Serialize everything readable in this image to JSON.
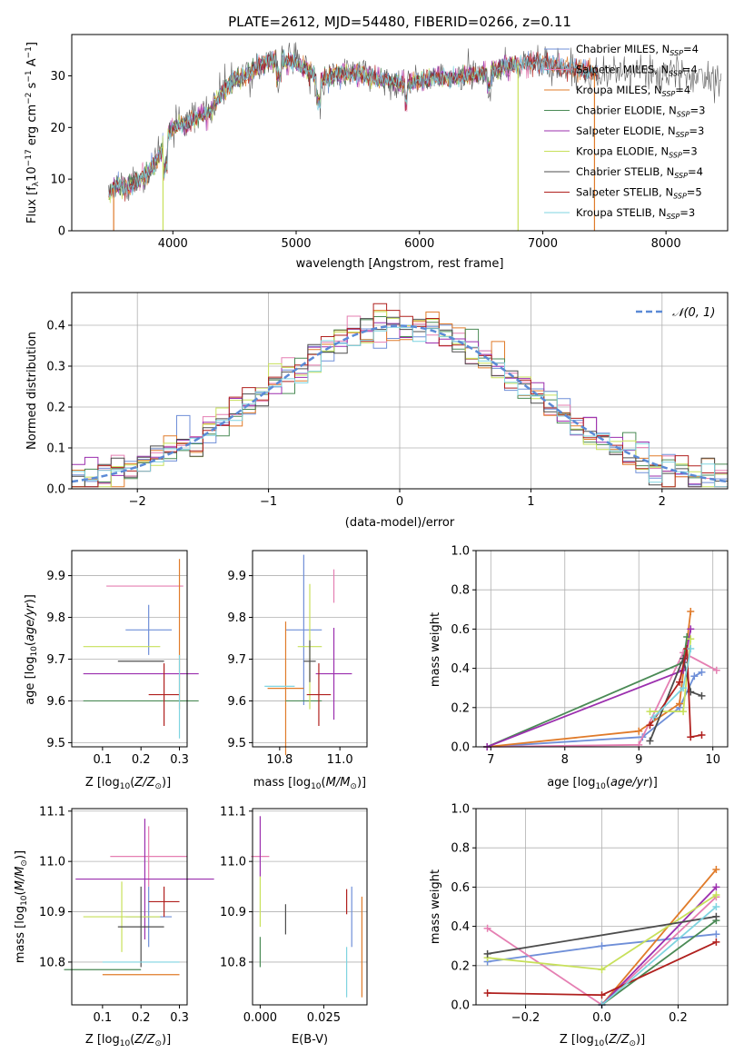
{
  "colors": {
    "chabrier_miles": "#6f8fd8",
    "salpeter_miles": "#e57fb2",
    "kroupa_miles": "#e07b2a",
    "chabrier_elodie": "#4a8a55",
    "salpeter_elodie": "#9b2fae",
    "kroupa_elodie": "#c7e05a",
    "chabrier_stelib": "#4d4d4d",
    "salpeter_stelib": "#b0201e",
    "kroupa_stelib": "#7fd4e0",
    "normal_curve": "#5b8ad6",
    "grid": "#b0b0b0"
  },
  "chart_data": [
    {
      "panel": "spectrum",
      "type": "line",
      "title": "PLATE=2612, MJD=54480, FIBERID=0266, z=0.11",
      "xlabel": "wavelength [Angstrom, rest frame]",
      "ylabel": "Flux [f_λ10^-17 erg cm^-2 s^-1 A^-1]",
      "xlim": [
        3180,
        8500
      ],
      "ylim": [
        0,
        38
      ],
      "xticks": [
        4000,
        5000,
        6000,
        7000,
        8000
      ],
      "yticks": [
        0,
        10,
        20,
        30
      ],
      "grid": false,
      "legend_position": "right",
      "legend": [
        "Chabrier MILES, N_SSP=4",
        "Salpeter MILES, N_SSP=4",
        "Kroupa MILES, N_SSP=4",
        "Chabrier ELODIE, N_SSP=3",
        "Salpeter ELODIE, N_SSP=3",
        "Kroupa ELODIE, N_SSP=3",
        "Chabrier STELIB, N_SSP=4",
        "Salpeter STELIB, N_SSP=5",
        "Kroupa STELIB, N_SSP=3"
      ],
      "continuum": [
        [
          3480,
          7
        ],
        [
          3550,
          9
        ],
        [
          3650,
          8.5
        ],
        [
          3750,
          10.5
        ],
        [
          3850,
          12.5
        ],
        [
          3900,
          15
        ],
        [
          3950,
          18
        ],
        [
          4000,
          20
        ],
        [
          4100,
          20.5
        ],
        [
          4200,
          22
        ],
        [
          4300,
          23
        ],
        [
          4400,
          27
        ],
        [
          4500,
          29
        ],
        [
          4600,
          30
        ],
        [
          4700,
          32
        ],
        [
          4800,
          33
        ],
        [
          4900,
          33
        ],
        [
          5000,
          32.5
        ],
        [
          5100,
          31
        ],
        [
          5200,
          29
        ],
        [
          5300,
          30
        ],
        [
          5400,
          30.5
        ],
        [
          5500,
          30.5
        ],
        [
          5600,
          30
        ],
        [
          5700,
          29
        ],
        [
          5800,
          29
        ],
        [
          5900,
          28
        ],
        [
          6000,
          29
        ],
        [
          6100,
          29.5
        ],
        [
          6200,
          29.5
        ],
        [
          6300,
          29.5
        ],
        [
          6400,
          30
        ],
        [
          6500,
          30.5
        ],
        [
          6600,
          31
        ],
        [
          6700,
          32
        ],
        [
          6800,
          32
        ],
        [
          6900,
          32.5
        ],
        [
          7000,
          32.5
        ],
        [
          7100,
          32
        ],
        [
          7200,
          31.5
        ],
        [
          7300,
          31
        ],
        [
          7500,
          30.5
        ],
        [
          7700,
          31
        ],
        [
          7900,
          30.5
        ],
        [
          8100,
          30
        ],
        [
          8300,
          30
        ],
        [
          8450,
          30
        ]
      ],
      "model_end": [
        7450,
        7450,
        7450,
        6800,
        6800,
        6800,
        7450,
        7450,
        7450
      ],
      "drop_lines": [
        3520,
        3920,
        6800,
        7420
      ]
    },
    {
      "panel": "residual_hist",
      "type": "step",
      "xlabel": "(data-model)/error",
      "ylabel": "Normed distribution",
      "xlim": [
        -2.5,
        2.5
      ],
      "ylim": [
        0,
        0.48
      ],
      "xticks": [
        -2,
        -1,
        0,
        1,
        2
      ],
      "yticks": [
        0.0,
        0.1,
        0.2,
        0.3,
        0.4
      ],
      "grid": true,
      "legend": [
        "𝒩(0, 1)"
      ],
      "legend_position": "top-right"
    },
    {
      "panel": "age_vs_Z",
      "type": "errorbar",
      "xlabel": "Z [log10(Z/Z⊙)]",
      "ylabel": "age [log10(age/yr)]",
      "xlim": [
        0.02,
        0.32
      ],
      "ylim": [
        9.49,
        9.96
      ],
      "xticks": [
        0.1,
        0.2,
        0.3
      ],
      "yticks": [
        9.5,
        9.6,
        9.7,
        9.8,
        9.9
      ],
      "points": [
        {
          "c": "chabrier_miles",
          "x": 0.22,
          "xerr": 0.06,
          "y": 9.77,
          "yerr": 0.06
        },
        {
          "c": "salpeter_miles",
          "x": 0.21,
          "xerr": 0.1,
          "y": 9.875,
          "yerr": 0.0
        },
        {
          "c": "kroupa_miles",
          "x": 0.3,
          "xerr": 0.0,
          "y": 9.76,
          "yerr": 0.18
        },
        {
          "c": "chabrier_elodie",
          "x": 0.2,
          "xerr": 0.15,
          "y": 9.6,
          "yerr": 0.0
        },
        {
          "c": "salpeter_elodie",
          "x": 0.2,
          "xerr": 0.15,
          "y": 9.665,
          "yerr": 0.0
        },
        {
          "c": "kroupa_elodie",
          "x": 0.15,
          "xerr": 0.1,
          "y": 9.73,
          "yerr": 0.0
        },
        {
          "c": "chabrier_stelib",
          "x": 0.2,
          "xerr": 0.06,
          "y": 9.695,
          "yerr": 0.0
        },
        {
          "c": "salpeter_stelib",
          "x": 0.26,
          "xerr": 0.04,
          "y": 9.615,
          "yerr": 0.075
        },
        {
          "c": "kroupa_stelib",
          "x": 0.3,
          "xerr": 0.0,
          "y": 9.61,
          "yerr": 0.1
        }
      ]
    },
    {
      "panel": "age_vs_mass",
      "type": "errorbar",
      "xlabel": "mass [log10(M/M⊙)]",
      "xlim": [
        10.71,
        11.09
      ],
      "ylim": [
        9.49,
        9.96
      ],
      "xticks": [
        10.8,
        11.0
      ],
      "yticks": [
        9.5,
        9.6,
        9.7,
        9.8,
        9.9
      ],
      "points": [
        {
          "c": "chabrier_miles",
          "x": 10.88,
          "xerr": 0.06,
          "y": 9.77,
          "yerr": 0.18
        },
        {
          "c": "salpeter_miles",
          "x": 10.98,
          "xerr": 0.0,
          "y": 9.875,
          "yerr": 0.04
        },
        {
          "c": "kroupa_miles",
          "x": 10.82,
          "xerr": 0.06,
          "y": 9.63,
          "yerr": 0.16
        },
        {
          "c": "chabrier_elodie",
          "x": 10.88,
          "xerr": 0.06,
          "y": 9.6,
          "yerr": 0.0
        },
        {
          "c": "salpeter_elodie",
          "x": 10.98,
          "xerr": 0.06,
          "y": 9.665,
          "yerr": 0.11
        },
        {
          "c": "kroupa_elodie",
          "x": 10.9,
          "xerr": 0.04,
          "y": 9.73,
          "yerr": 0.15
        },
        {
          "c": "chabrier_stelib",
          "x": 10.9,
          "xerr": 0.02,
          "y": 9.695,
          "yerr": 0.05
        },
        {
          "c": "salpeter_stelib",
          "x": 10.93,
          "xerr": 0.04,
          "y": 9.615,
          "yerr": 0.075
        },
        {
          "c": "kroupa_stelib",
          "x": 10.8,
          "xerr": 0.05,
          "y": 9.635,
          "yerr": 0.0
        }
      ]
    },
    {
      "panel": "weight_vs_age",
      "type": "line",
      "xlabel": "age [log10(age/yr)]",
      "ylabel": "mass weight",
      "xlim": [
        6.8,
        10.2
      ],
      "ylim": [
        0,
        1.0
      ],
      "xticks": [
        7,
        8,
        9,
        10
      ],
      "yticks": [
        0.0,
        0.2,
        0.4,
        0.6,
        0.8,
        1.0
      ],
      "grid": true,
      "series": [
        {
          "c": "chabrier_miles",
          "x": [
            6.95,
            9.05,
            9.55,
            9.75,
            9.85
          ],
          "y": [
            0.0,
            0.05,
            0.2,
            0.36,
            0.38
          ]
        },
        {
          "c": "salpeter_miles",
          "x": [
            6.95,
            9.0,
            9.6,
            10.05
          ],
          "y": [
            0.0,
            0.01,
            0.48,
            0.39
          ]
        },
        {
          "c": "kroupa_miles",
          "x": [
            6.95,
            9.0,
            9.55,
            9.7
          ],
          "y": [
            0.0,
            0.08,
            0.22,
            0.69
          ]
        },
        {
          "c": "chabrier_elodie",
          "x": [
            6.95,
            9.6,
            9.65
          ],
          "y": [
            0.0,
            0.43,
            0.56
          ]
        },
        {
          "c": "salpeter_elodie",
          "x": [
            6.95,
            9.6,
            9.7
          ],
          "y": [
            0.0,
            0.39,
            0.6
          ]
        },
        {
          "c": "kroupa_elodie",
          "x": [
            9.15,
            9.6,
            9.7
          ],
          "y": [
            0.18,
            0.18,
            0.55
          ]
        },
        {
          "c": "chabrier_stelib",
          "x": [
            9.15,
            9.6,
            9.7,
            9.85
          ],
          "y": [
            0.03,
            0.45,
            0.28,
            0.26
          ]
        },
        {
          "c": "salpeter_stelib",
          "x": [
            9.15,
            9.55,
            9.65,
            9.7,
            9.85
          ],
          "y": [
            0.11,
            0.33,
            0.5,
            0.05,
            0.06
          ]
        },
        {
          "c": "kroupa_stelib",
          "x": [
            9.2,
            9.6,
            9.7
          ],
          "y": [
            0.15,
            0.3,
            0.5
          ]
        }
      ]
    },
    {
      "panel": "mass_vs_Z",
      "type": "errorbar",
      "xlabel": "Z [log10(Z/Z⊙)]",
      "ylabel": "mass [log10(M/M⊙)]",
      "xlim": [
        0.02,
        0.32
      ],
      "ylim": [
        10.715,
        11.105
      ],
      "xticks": [
        0.1,
        0.2,
        0.3
      ],
      "yticks": [
        10.8,
        10.9,
        11.0,
        11.1
      ],
      "points": [
        {
          "c": "chabrier_miles",
          "x": 0.22,
          "xerr": 0.06,
          "y": 10.89,
          "yerr": 0.06
        },
        {
          "c": "salpeter_miles",
          "x": 0.22,
          "xerr": 0.1,
          "y": 11.01,
          "yerr": 0.06
        },
        {
          "c": "kroupa_miles",
          "x": 0.2,
          "xerr": 0.1,
          "y": 10.775,
          "yerr": 0.0
        },
        {
          "c": "chabrier_elodie",
          "x": 0.1,
          "xerr": 0.1,
          "y": 10.785,
          "yerr": 0.0
        },
        {
          "c": "salpeter_elodie",
          "x": 0.21,
          "xerr": 0.18,
          "y": 10.965,
          "yerr": 0.12
        },
        {
          "c": "kroupa_elodie",
          "x": 0.15,
          "xerr": 0.1,
          "y": 10.89,
          "yerr": 0.07
        },
        {
          "c": "chabrier_stelib",
          "x": 0.2,
          "xerr": 0.06,
          "y": 10.87,
          "yerr": 0.08
        },
        {
          "c": "salpeter_stelib",
          "x": 0.26,
          "xerr": 0.04,
          "y": 10.92,
          "yerr": 0.03
        },
        {
          "c": "kroupa_stelib",
          "x": 0.2,
          "xerr": 0.1,
          "y": 10.8,
          "yerr": 0.0
        }
      ]
    },
    {
      "panel": "mass_vs_ebv",
      "type": "errorbar",
      "xlabel": "E(B-V)",
      "xlim": [
        -0.003,
        0.042
      ],
      "ylim": [
        10.715,
        11.105
      ],
      "xticks": [
        0.0,
        0.025
      ],
      "xtick_labels": [
        "0.000",
        "0.025"
      ],
      "yticks": [
        10.8,
        10.9,
        11.0,
        11.1
      ],
      "points": [
        {
          "c": "chabrier_miles",
          "x": 0.036,
          "yerr": 0.06,
          "y": 10.89
        },
        {
          "c": "salpeter_miles",
          "x": 0.0,
          "yerr": 0.0,
          "y": 11.01
        },
        {
          "c": "kroupa_miles",
          "x": 0.04,
          "yerr": 0.1,
          "y": 10.83
        },
        {
          "c": "chabrier_elodie",
          "x": 0.0,
          "yerr": 0.03,
          "y": 10.82
        },
        {
          "c": "salpeter_elodie",
          "x": 0.0,
          "yerr": 0.06,
          "y": 11.03
        },
        {
          "c": "kroupa_elodie",
          "x": 0.0,
          "yerr": 0.05,
          "y": 10.92
        },
        {
          "c": "chabrier_stelib",
          "x": 0.01,
          "yerr": 0.03,
          "y": 10.885
        },
        {
          "c": "salpeter_stelib",
          "x": 0.034,
          "yerr": 0.025,
          "y": 10.92
        },
        {
          "c": "kroupa_stelib",
          "x": 0.034,
          "yerr": 0.05,
          "y": 10.78
        }
      ]
    },
    {
      "panel": "weight_vs_Z",
      "type": "line",
      "xlabel": "Z [log10(Z/Z⊙)]",
      "ylabel": "mass weight",
      "xlim": [
        -0.33,
        0.33
      ],
      "ylim": [
        0,
        1.0
      ],
      "xticks": [
        -0.2,
        0.0,
        0.2
      ],
      "xtick_labels": [
        "−0.2",
        "0.0",
        "0.2"
      ],
      "yticks": [
        0.0,
        0.2,
        0.4,
        0.6,
        0.8,
        1.0
      ],
      "grid": true,
      "series": [
        {
          "c": "chabrier_miles",
          "x": [
            -0.3,
            0.0,
            0.3
          ],
          "y": [
            0.22,
            0.3,
            0.36
          ]
        },
        {
          "c": "salpeter_miles",
          "x": [
            -0.3,
            0.0,
            0.3
          ],
          "y": [
            0.39,
            0.0,
            0.55
          ]
        },
        {
          "c": "kroupa_miles",
          "x": [
            0.0,
            0.3
          ],
          "y": [
            0.0,
            0.69
          ]
        },
        {
          "c": "chabrier_elodie",
          "x": [
            0.0,
            0.3
          ],
          "y": [
            0.0,
            0.43
          ]
        },
        {
          "c": "salpeter_elodie",
          "x": [
            0.0,
            0.3
          ],
          "y": [
            0.0,
            0.6
          ]
        },
        {
          "c": "kroupa_elodie",
          "x": [
            -0.3,
            0.0,
            0.3
          ],
          "y": [
            0.24,
            0.18,
            0.56
          ]
        },
        {
          "c": "chabrier_stelib",
          "x": [
            -0.3,
            0.3
          ],
          "y": [
            0.26,
            0.45
          ]
        },
        {
          "c": "salpeter_stelib",
          "x": [
            -0.3,
            0.0,
            0.3
          ],
          "y": [
            0.06,
            0.05,
            0.32
          ]
        },
        {
          "c": "kroupa_stelib",
          "x": [
            0.0,
            0.3
          ],
          "y": [
            0.0,
            0.5
          ]
        }
      ]
    }
  ]
}
